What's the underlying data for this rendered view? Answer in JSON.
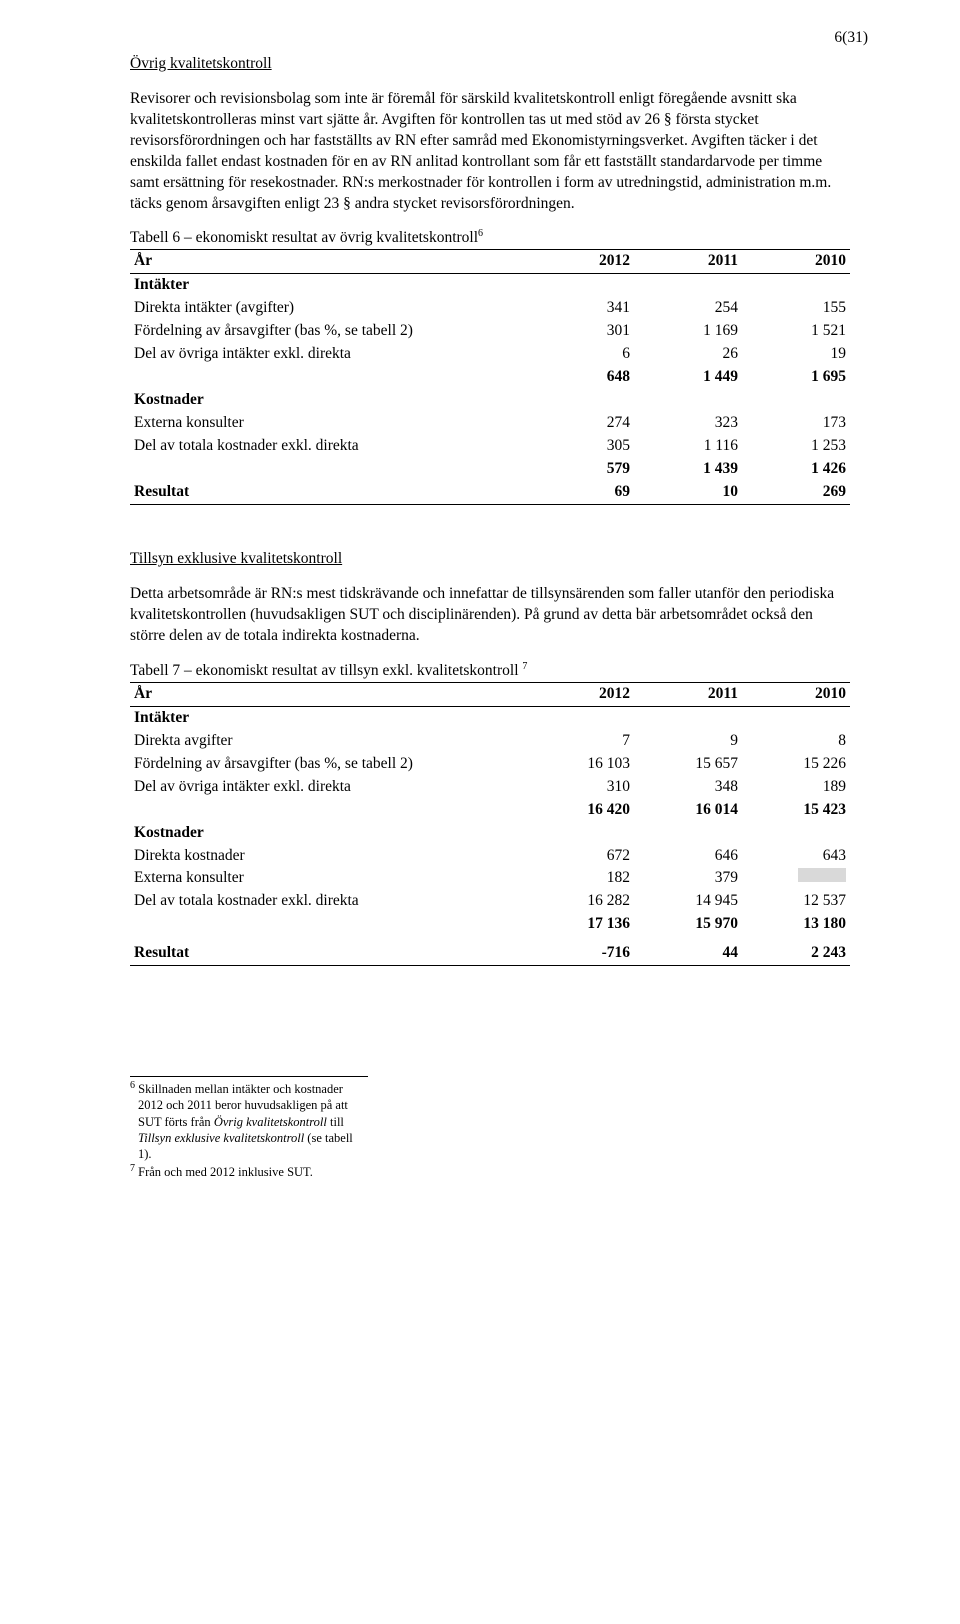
{
  "page_number": "6(31)",
  "section1": {
    "title": "Övrig kvalitetskontroll",
    "para1": "Revisorer och revisionsbolag som inte är föremål för särskild kvalitetskontroll enligt föregående avsnitt ska kvalitetskontrolleras minst vart sjätte år. Avgiften för kontrollen tas ut med stöd av 26 § första stycket revisorsförordningen och har fastställts av RN efter samråd med Ekonomistyrningsverket. Avgiften täcker i det enskilda fallet endast kostnaden för en av RN anlitad kontrollant som får ett fastställt standardarvode per timme samt ersättning för resekostnader. RN:s merkostnader för kontrollen i form av utredningstid, administration m.m. täcks genom årsavgiften enligt 23 § andra stycket revisorsförordningen."
  },
  "table6": {
    "caption_pre": "Tabell 6 – ekonomiskt resultat av övrig kvalitetskontroll",
    "caption_sup": "6",
    "header": {
      "c1": "År",
      "c2": "2012",
      "c3": "2011",
      "c4": "2010"
    },
    "rows": [
      {
        "label": "Intäkter",
        "bold": true
      },
      {
        "label": "Direkta intäkter (avgifter)",
        "c2": "341",
        "c3": "254",
        "c4": "155"
      },
      {
        "label": "Fördelning av årsavgifter (bas %, se tabell 2)",
        "c2": "301",
        "c3": "1 169",
        "c4": "1 521"
      },
      {
        "label": "Del av övriga intäkter exkl. direkta",
        "c2": "6",
        "c3": "26",
        "c4": "19"
      },
      {
        "label": "",
        "c2": "648",
        "c3": "1 449",
        "c4": "1 695",
        "bold": true
      },
      {
        "label": "Kostnader",
        "bold": true
      },
      {
        "label": "Externa konsulter",
        "c2": "274",
        "c3": "323",
        "c4": "173"
      },
      {
        "label": "Del av totala kostnader exkl. direkta",
        "c2": "305",
        "c3": "1 116",
        "c4": "1 253"
      },
      {
        "label": "",
        "c2": "579",
        "c3": "1 439",
        "c4": "1 426",
        "bold": true
      },
      {
        "label": "Resultat",
        "c2": "69",
        "c3": "10",
        "c4": "269",
        "bold": true
      }
    ]
  },
  "section2": {
    "title": "Tillsyn exklusive kvalitetskontroll",
    "para1": "Detta arbetsområde är RN:s mest tidskrävande och innefattar de tillsynsärenden som faller utanför den periodiska kvalitetskontrollen (huvudsakligen SUT och disciplinärenden). På grund av detta bär arbetsområdet också den större delen av de totala indirekta kostnaderna."
  },
  "table7": {
    "caption_pre": "Tabell 7 – ekonomiskt resultat av tillsyn exkl. kvalitetskontroll ",
    "caption_sup": "7",
    "header": {
      "c1": "År",
      "c2": "2012",
      "c3": "2011",
      "c4": "2010"
    },
    "rows": [
      {
        "label": "Intäkter",
        "bold": true
      },
      {
        "label": "Direkta avgifter",
        "c2": "7",
        "c3": "9",
        "c4": "8"
      },
      {
        "label": "Fördelning av årsavgifter (bas %, se tabell 2)",
        "c2": "16 103",
        "c3": "15 657",
        "c4": "15 226"
      },
      {
        "label": "Del av övriga intäkter exkl. direkta",
        "c2": "310",
        "c3": "348",
        "c4": "189"
      },
      {
        "label": "",
        "c2": "16 420",
        "c3": "16 014",
        "c4": "15 423",
        "bold": true
      },
      {
        "label": "Kostnader",
        "bold": true
      },
      {
        "label": "Direkta kostnader",
        "c2": "672",
        "c3": "646",
        "c4": "643"
      },
      {
        "label": "Externa konsulter",
        "c2": "182",
        "c3": "379",
        "c4_gray": true
      },
      {
        "label": "Del av totala kostnader exkl. direkta",
        "c2": "16 282",
        "c3": "14 945",
        "c4": "12 537"
      },
      {
        "label": "",
        "c2": "17 136",
        "c3": "15 970",
        "c4": "13 180",
        "bold": true
      },
      {
        "label": "Resultat",
        "c2": "-716",
        "c3": "44",
        "c4": "2 243",
        "bold": true,
        "spaced": true
      }
    ]
  },
  "footnotes": {
    "fn6_num": "6",
    "fn6_a": " Skillnaden mellan intäkter och kostnader 2012 och 2011 beror huvudsakligen på att SUT förts från ",
    "fn6_i1": "Övrig kvalitetskontroll",
    "fn6_b": " till ",
    "fn6_i2": "Tillsyn exklusive kvalitetskontroll",
    "fn6_c": " (se tabell 1).",
    "fn7_num": "7",
    "fn7": " Från och med 2012 inklusive SUT."
  }
}
